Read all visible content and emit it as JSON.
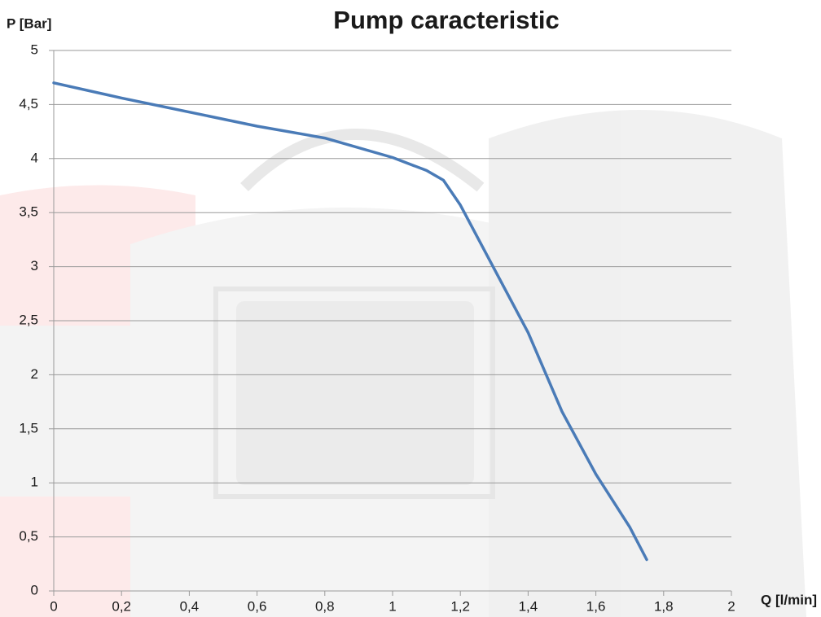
{
  "chart_data": {
    "type": "line",
    "title": "Pump caracteristic",
    "y_label": "P [Bar]",
    "x_label": "Q [l/min]",
    "x": [
      0,
      0.2,
      0.4,
      0.6,
      0.8,
      1.0,
      1.1,
      1.15,
      1.2,
      1.3,
      1.4,
      1.5,
      1.6,
      1.7,
      1.75
    ],
    "values": [
      4.7,
      4.56,
      4.43,
      4.3,
      4.19,
      4.01,
      3.89,
      3.8,
      3.57,
      2.98,
      2.39,
      1.66,
      1.08,
      0.59,
      0.29
    ],
    "color": "#4a7bb7",
    "xlim": [
      0,
      2
    ],
    "ylim": [
      0,
      5
    ],
    "xticks": [
      0,
      {
        "value": 0.2,
        "label": "0,2"
      },
      {
        "value": 0.4,
        "label": "0,4"
      },
      {
        "value": 0.6,
        "label": "0,6"
      },
      {
        "value": 0.8,
        "label": "0,8"
      },
      1,
      {
        "value": 1.2,
        "label": "1,2"
      },
      {
        "value": 1.4,
        "label": "1,4"
      },
      {
        "value": 1.6,
        "label": "1,6"
      },
      {
        "value": 1.8,
        "label": "1,8"
      },
      2
    ],
    "yticks": [
      0,
      {
        "value": 0.5,
        "label": "0,5"
      },
      1,
      {
        "value": 1.5,
        "label": "1,5"
      },
      2,
      {
        "value": 2.5,
        "label": "2,5"
      },
      3,
      {
        "value": 3.5,
        "label": "3,5"
      },
      4,
      {
        "value": 4.5,
        "label": "4,5"
      },
      5
    ],
    "grid": true
  }
}
